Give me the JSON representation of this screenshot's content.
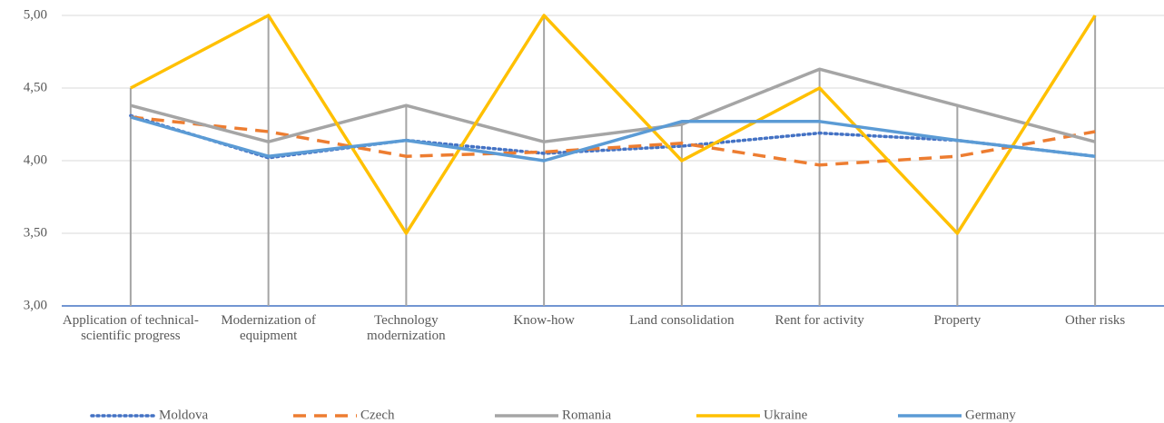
{
  "chart_data": {
    "type": "line",
    "categories": [
      "Application of technical-scientific progress",
      "Modernization of equipment",
      "Technology modernization",
      "Know-how",
      "Land consolidation",
      "Rent for activity",
      "Property",
      "Other risks"
    ],
    "series": [
      {
        "name": "Moldova",
        "color": "#4472c4",
        "line_style": "dotted",
        "values": [
          4.31,
          4.02,
          4.14,
          4.05,
          4.1,
          4.19,
          4.14,
          4.03
        ]
      },
      {
        "name": "Czech",
        "color": "#ed7d31",
        "line_style": "dashed",
        "values": [
          4.3,
          4.2,
          4.03,
          4.06,
          4.12,
          3.97,
          4.03,
          4.2
        ]
      },
      {
        "name": "Romania",
        "color": "#a5a5a5",
        "line_style": "solid",
        "values": [
          4.38,
          4.13,
          4.38,
          4.13,
          4.25,
          4.63,
          4.38,
          4.13
        ]
      },
      {
        "name": "Ukraine",
        "color": "#ffc000",
        "line_style": "solid",
        "values": [
          4.5,
          5.0,
          3.5,
          5.0,
          4.0,
          4.5,
          3.5,
          5.0
        ]
      },
      {
        "name": "Germany",
        "color": "#5b9bd5",
        "line_style": "solid",
        "values": [
          4.3,
          4.03,
          4.14,
          4.0,
          4.27,
          4.27,
          4.14,
          4.03
        ]
      }
    ],
    "ylim": [
      3,
      5
    ],
    "yticks": [
      {
        "value": 3,
        "label": "3,00"
      },
      {
        "value": 3.5,
        "label": "3,50"
      },
      {
        "value": 4,
        "label": "4,00"
      },
      {
        "value": 4.5,
        "label": "4,50"
      },
      {
        "value": 5,
        "label": "5,00"
      }
    ],
    "grid": true,
    "legend": "bottom"
  }
}
